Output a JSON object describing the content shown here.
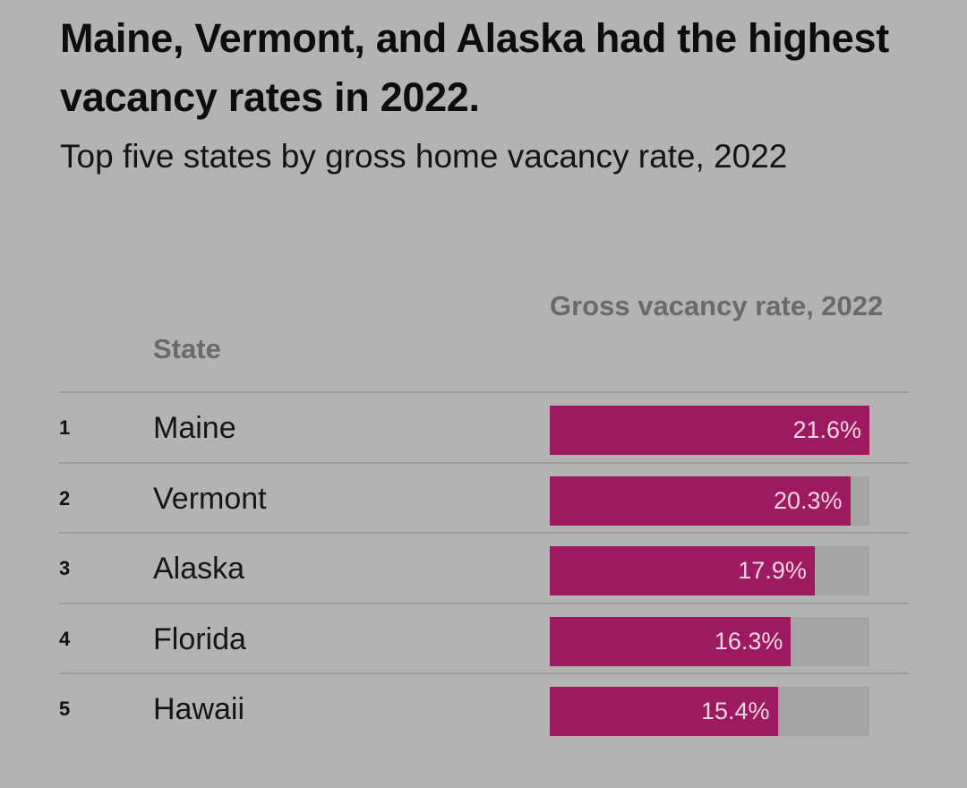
{
  "title": "Maine, Vermont, and Alaska had the highest vacancy rates in 2022.",
  "subtitle": "Top five states by gross home vacancy rate, 2022",
  "colors": {
    "bar": "#9e1a60",
    "track": "#a4a4a4",
    "background": "#b3b3b3"
  },
  "chart_data": {
    "type": "table",
    "title": "Maine, Vermont, and Alaska had the highest vacancy rates in 2022.",
    "subtitle": "Top five states by gross home vacancy rate, 2022",
    "columns": [
      "State",
      "Gross vacancy rate, 2022"
    ],
    "xlim": [
      0,
      21.6
    ],
    "rows": [
      {
        "rank": "1",
        "state": "Maine",
        "value": 21.6,
        "label": "21.6%"
      },
      {
        "rank": "2",
        "state": "Vermont",
        "value": 20.3,
        "label": "20.3%"
      },
      {
        "rank": "3",
        "state": "Alaska",
        "value": 17.9,
        "label": "17.9%"
      },
      {
        "rank": "4",
        "state": "Florida",
        "value": 16.3,
        "label": "16.3%"
      },
      {
        "rank": "5",
        "state": "Hawaii",
        "value": 15.4,
        "label": "15.4%"
      }
    ]
  }
}
